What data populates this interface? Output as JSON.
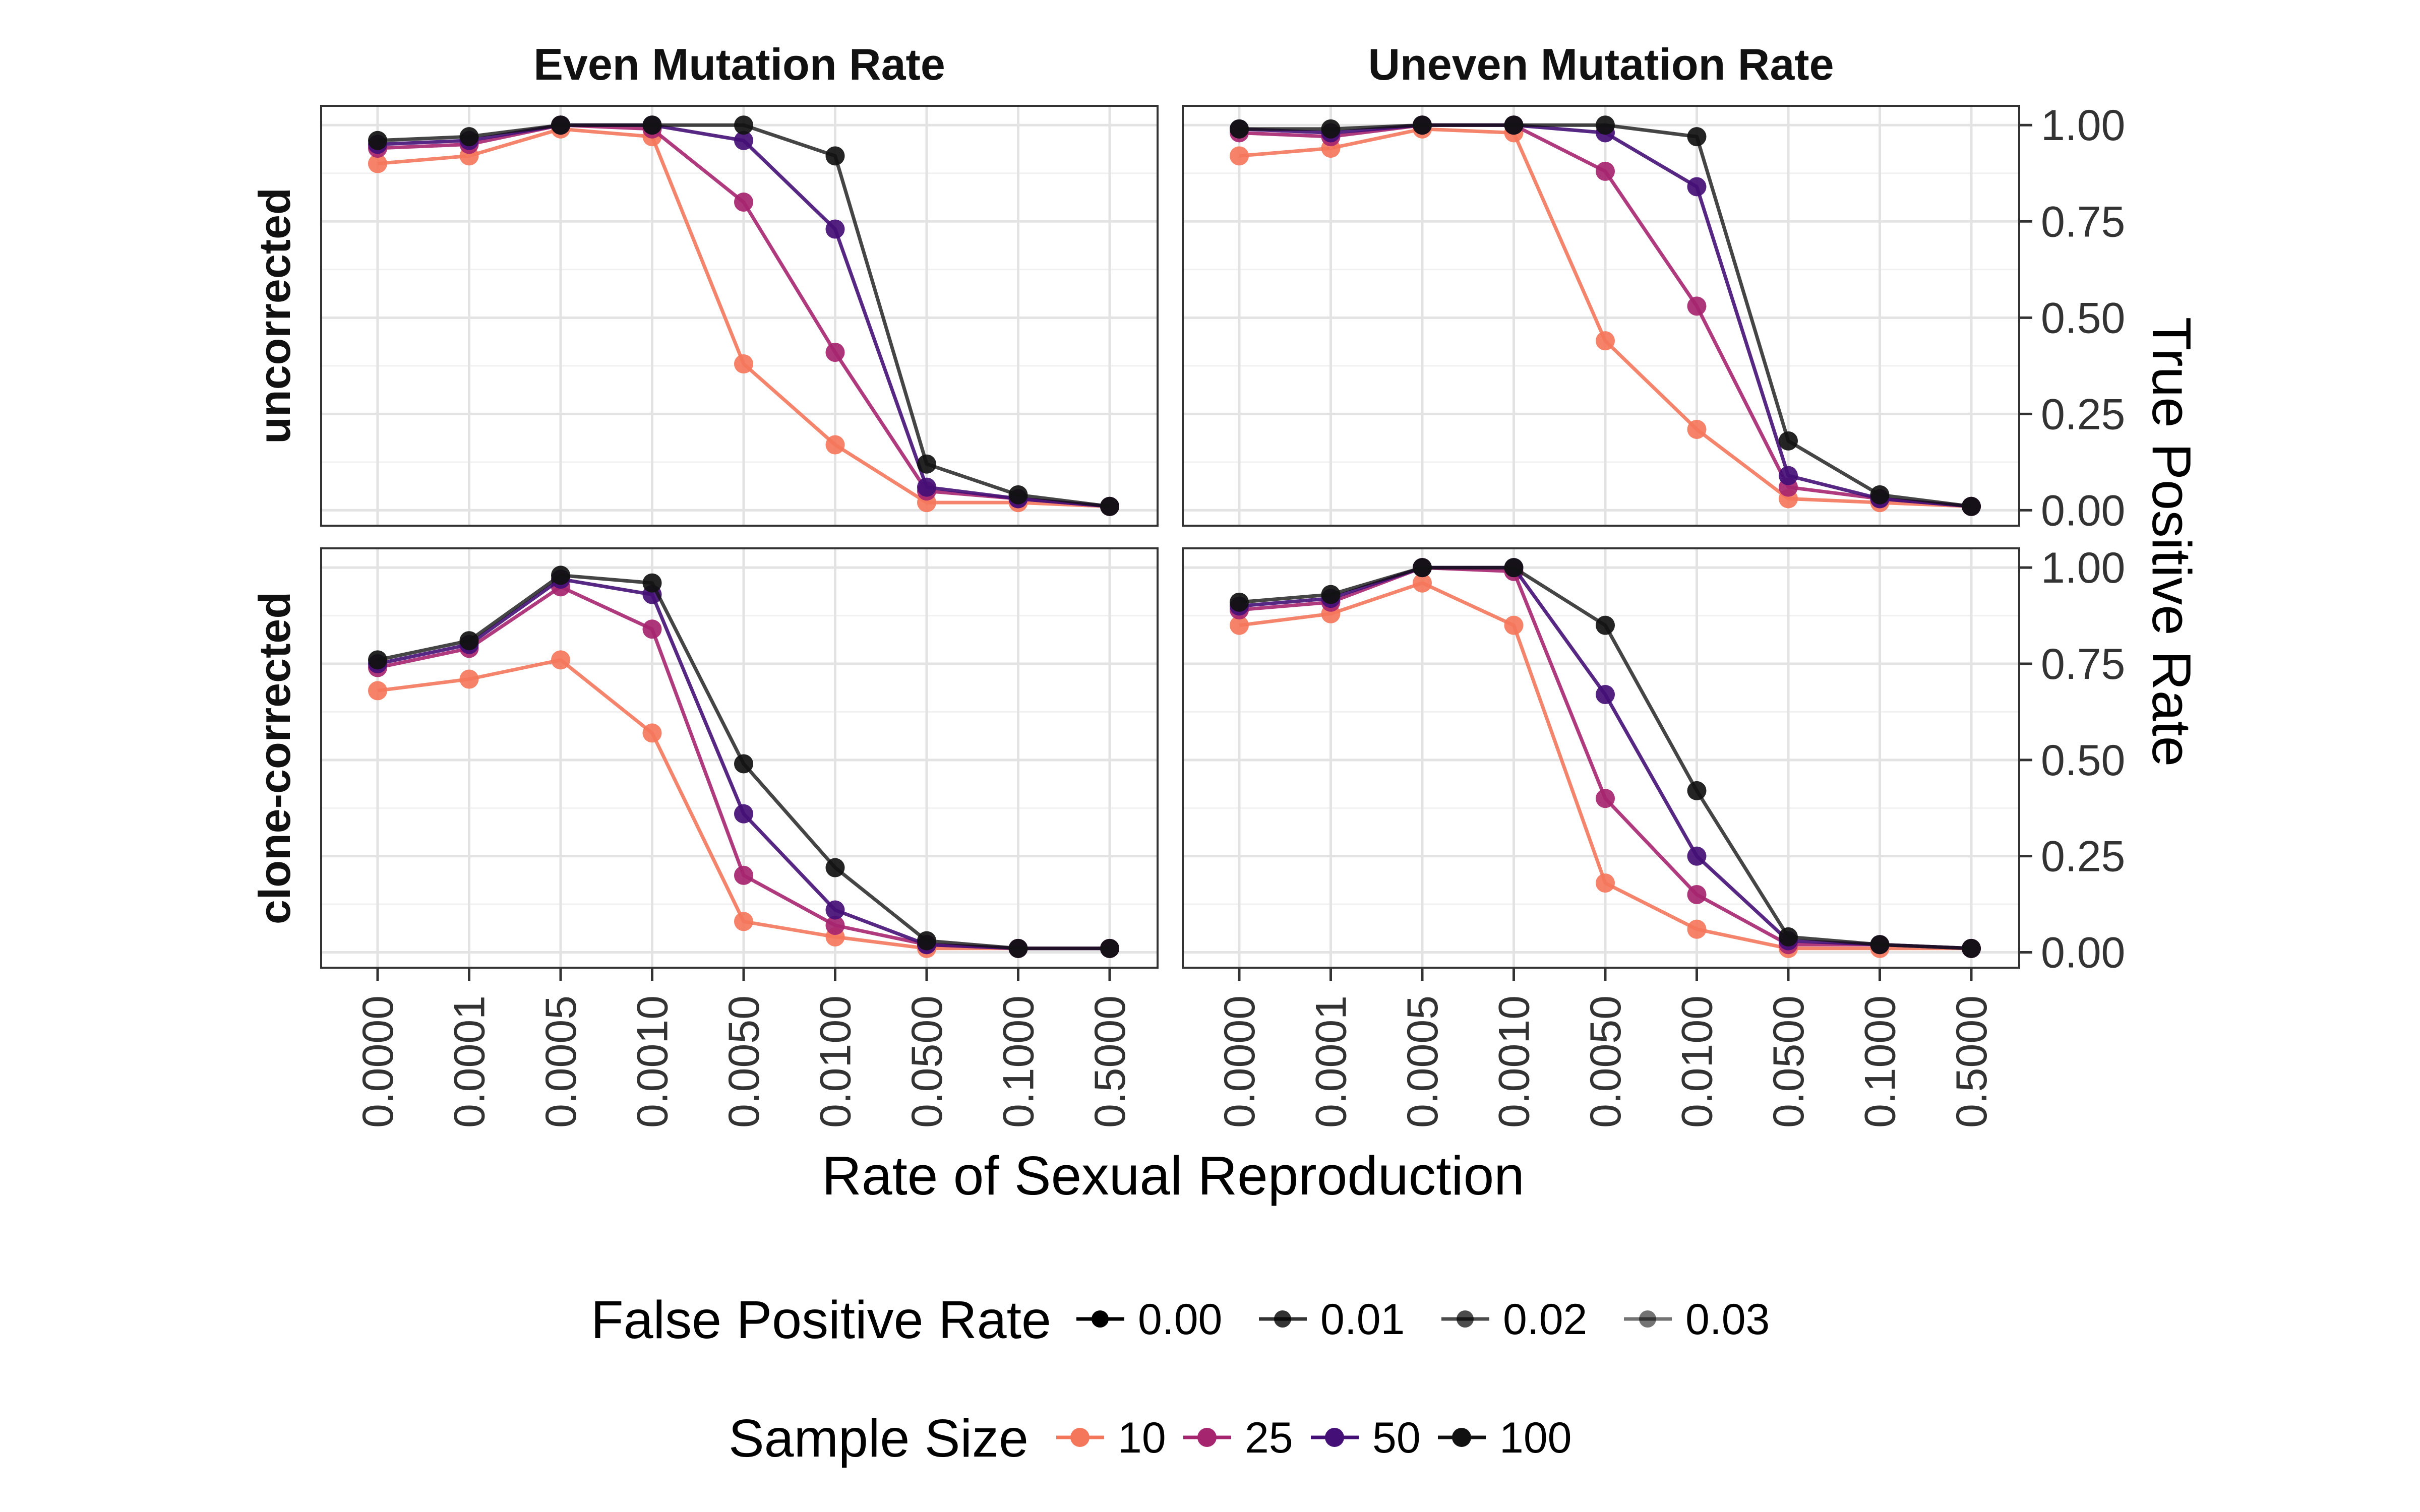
{
  "chart_data": {
    "type": "line",
    "xlabel": "Rate of Sexual Reproduction",
    "ylabel": "True Positive Rate",
    "x_categories": [
      "0.0000",
      "0.0001",
      "0.0005",
      "0.0010",
      "0.0050",
      "0.0100",
      "0.0500",
      "0.1000",
      "0.5000"
    ],
    "y_ticks": [
      0.0,
      0.25,
      0.5,
      0.75,
      1.0
    ],
    "y_tick_labels": [
      "0.00",
      "0.25",
      "0.50",
      "0.75",
      "1.00"
    ],
    "ylim": [
      -0.04,
      1.05
    ],
    "grid": true,
    "columns": [
      "Even Mutation Rate",
      "Uneven Mutation Rate"
    ],
    "rows": [
      "uncorrected",
      "clone-corrected"
    ],
    "series_colors": {
      "10": "#f4775c",
      "25": "#a6256f",
      "50": "#440f76",
      "100": "#111111"
    },
    "panels": [
      {
        "column": "Even Mutation Rate",
        "row": "uncorrected",
        "series": [
          {
            "name": "10",
            "values": [
              0.9,
              0.92,
              0.99,
              0.97,
              0.38,
              0.17,
              0.02,
              0.02,
              0.01
            ]
          },
          {
            "name": "25",
            "values": [
              0.94,
              0.95,
              1.0,
              0.99,
              0.8,
              0.41,
              0.05,
              0.03,
              0.01
            ]
          },
          {
            "name": "50",
            "values": [
              0.95,
              0.96,
              1.0,
              1.0,
              0.96,
              0.73,
              0.06,
              0.03,
              0.01
            ]
          },
          {
            "name": "100",
            "values": [
              0.96,
              0.97,
              1.0,
              1.0,
              1.0,
              0.92,
              0.12,
              0.04,
              0.01
            ]
          }
        ]
      },
      {
        "column": "Uneven Mutation Rate",
        "row": "uncorrected",
        "series": [
          {
            "name": "10",
            "values": [
              0.92,
              0.94,
              0.99,
              0.98,
              0.44,
              0.21,
              0.03,
              0.02,
              0.01
            ]
          },
          {
            "name": "25",
            "values": [
              0.98,
              0.97,
              1.0,
              1.0,
              0.88,
              0.53,
              0.06,
              0.03,
              0.01
            ]
          },
          {
            "name": "50",
            "values": [
              0.99,
              0.98,
              1.0,
              1.0,
              0.98,
              0.84,
              0.09,
              0.03,
              0.01
            ]
          },
          {
            "name": "100",
            "values": [
              0.99,
              0.99,
              1.0,
              1.0,
              1.0,
              0.97,
              0.18,
              0.04,
              0.01
            ]
          }
        ]
      },
      {
        "column": "Even Mutation Rate",
        "row": "clone-corrected",
        "series": [
          {
            "name": "10",
            "values": [
              0.68,
              0.71,
              0.76,
              0.57,
              0.08,
              0.04,
              0.01,
              0.01,
              0.01
            ]
          },
          {
            "name": "25",
            "values": [
              0.74,
              0.79,
              0.95,
              0.84,
              0.2,
              0.07,
              0.02,
              0.01,
              0.01
            ]
          },
          {
            "name": "50",
            "values": [
              0.75,
              0.8,
              0.97,
              0.93,
              0.36,
              0.11,
              0.02,
              0.01,
              0.01
            ]
          },
          {
            "name": "100",
            "values": [
              0.76,
              0.81,
              0.98,
              0.96,
              0.49,
              0.22,
              0.03,
              0.01,
              0.01
            ]
          }
        ]
      },
      {
        "column": "Uneven Mutation Rate",
        "row": "clone-corrected",
        "series": [
          {
            "name": "10",
            "values": [
              0.85,
              0.88,
              0.96,
              0.85,
              0.18,
              0.06,
              0.01,
              0.01,
              0.01
            ]
          },
          {
            "name": "25",
            "values": [
              0.89,
              0.91,
              1.0,
              0.99,
              0.4,
              0.15,
              0.02,
              0.02,
              0.01
            ]
          },
          {
            "name": "50",
            "values": [
              0.9,
              0.92,
              1.0,
              1.0,
              0.67,
              0.25,
              0.03,
              0.02,
              0.01
            ]
          },
          {
            "name": "100",
            "values": [
              0.91,
              0.93,
              1.0,
              1.0,
              0.85,
              0.42,
              0.04,
              0.02,
              0.01
            ]
          }
        ]
      }
    ],
    "legends": {
      "false_positive": {
        "title": "False Positive Rate",
        "entries": [
          {
            "label": "0.00",
            "opacity": 1.0
          },
          {
            "label": "0.01",
            "opacity": 0.8
          },
          {
            "label": "0.02",
            "opacity": 0.7
          },
          {
            "label": "0.03",
            "opacity": 0.55
          }
        ]
      },
      "sample_size": {
        "title": "Sample Size",
        "entries": [
          {
            "label": "10",
            "color": "#f4775c"
          },
          {
            "label": "25",
            "color": "#a6256f"
          },
          {
            "label": "50",
            "color": "#440f76"
          },
          {
            "label": "100",
            "color": "#111111"
          }
        ]
      }
    }
  }
}
